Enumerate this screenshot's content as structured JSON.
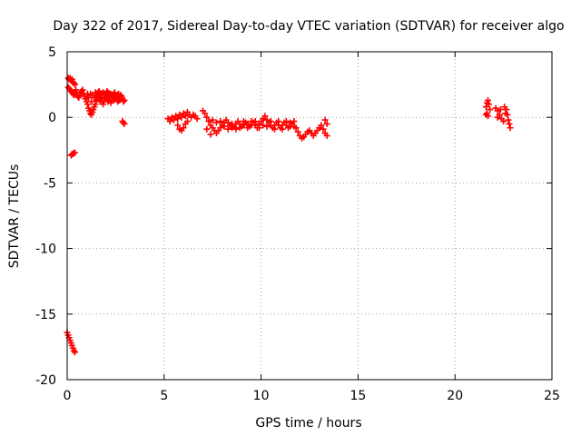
{
  "chart_data": {
    "type": "scatter",
    "title": "Day 322 of 2017, Sidereal Day-to-day VTEC variation (SDTVAR) for receiver algo",
    "xlabel": "GPS time / hours",
    "ylabel": "SDTVAR / TECUs",
    "xlim": [
      0,
      25
    ],
    "ylim": [
      -20,
      5
    ],
    "xticks": [
      0,
      5,
      10,
      15,
      20,
      25
    ],
    "yticks": [
      5,
      0,
      -5,
      -10,
      -15,
      -20
    ],
    "xtick_labels": [
      "0",
      "5",
      "10",
      "15",
      "20",
      "25"
    ],
    "ytick_labels": [
      "5",
      "0",
      "-5",
      "-10",
      "-15",
      "-20"
    ],
    "grid": true,
    "marker": "+",
    "series_color": "#ff0000",
    "series": [
      {
        "name": "SDTVAR",
        "points": [
          [
            0.05,
            3.0
          ],
          [
            0.1,
            2.9
          ],
          [
            0.15,
            3.0
          ],
          [
            0.2,
            2.8
          ],
          [
            0.25,
            2.9
          ],
          [
            0.3,
            2.7
          ],
          [
            0.35,
            2.6
          ],
          [
            0.4,
            2.5
          ],
          [
            0.05,
            2.3
          ],
          [
            0.1,
            2.2
          ],
          [
            0.15,
            2.1
          ],
          [
            0.2,
            2.0
          ],
          [
            0.25,
            1.9
          ],
          [
            0.3,
            1.8
          ],
          [
            0.35,
            1.7
          ],
          [
            0.4,
            1.9
          ],
          [
            0.45,
            2.1
          ],
          [
            0.5,
            1.9
          ],
          [
            0.55,
            1.6
          ],
          [
            0.6,
            1.5
          ],
          [
            0.65,
            1.7
          ],
          [
            0.7,
            1.9
          ],
          [
            0.75,
            2.0
          ],
          [
            0.8,
            2.1
          ],
          [
            0.85,
            1.8
          ],
          [
            0.9,
            1.6
          ],
          [
            0.95,
            1.4
          ],
          [
            1.0,
            1.2
          ],
          [
            1.05,
            1.0
          ],
          [
            1.1,
            0.7
          ],
          [
            1.15,
            0.5
          ],
          [
            1.2,
            0.3
          ],
          [
            1.25,
            0.2
          ],
          [
            1.3,
            0.4
          ],
          [
            1.35,
            0.6
          ],
          [
            1.4,
            0.8
          ],
          [
            1.45,
            1.0
          ],
          [
            1.5,
            1.3
          ],
          [
            1.55,
            1.6
          ],
          [
            1.6,
            1.9
          ],
          [
            1.65,
            2.0
          ],
          [
            1.7,
            1.8
          ],
          [
            1.75,
            1.5
          ],
          [
            1.8,
            1.2
          ],
          [
            1.85,
            1.0
          ],
          [
            1.9,
            1.2
          ],
          [
            1.95,
            1.5
          ],
          [
            2.0,
            1.8
          ],
          [
            2.05,
            2.0
          ],
          [
            2.1,
            1.9
          ],
          [
            2.15,
            1.6
          ],
          [
            2.2,
            1.3
          ],
          [
            2.25,
            1.1
          ],
          [
            2.3,
            1.3
          ],
          [
            2.35,
            1.6
          ],
          [
            2.4,
            1.8
          ],
          [
            2.45,
            1.9
          ],
          [
            2.5,
            1.7
          ],
          [
            2.55,
            1.4
          ],
          [
            2.6,
            1.2
          ],
          [
            2.65,
            1.3
          ],
          [
            2.7,
            1.5
          ],
          [
            2.75,
            1.7
          ],
          [
            2.8,
            1.6
          ],
          [
            2.85,
            1.4
          ],
          [
            2.9,
            1.2
          ],
          [
            2.95,
            1.3
          ],
          [
            1.0,
            1.6
          ],
          [
            1.1,
            1.5
          ],
          [
            1.2,
            1.8
          ],
          [
            1.3,
            1.7
          ],
          [
            1.4,
            1.5
          ],
          [
            1.5,
            1.7
          ],
          [
            1.6,
            1.4
          ],
          [
            1.7,
            1.2
          ],
          [
            1.8,
            1.5
          ],
          [
            1.9,
            1.7
          ],
          [
            2.0,
            1.4
          ],
          [
            2.1,
            1.2
          ],
          [
            2.2,
            1.6
          ],
          [
            2.3,
            1.5
          ],
          [
            2.4,
            1.3
          ],
          [
            2.5,
            1.5
          ],
          [
            2.6,
            1.6
          ],
          [
            2.7,
            1.3
          ],
          [
            1.05,
            1.8
          ],
          [
            1.25,
            1.2
          ],
          [
            1.45,
            1.9
          ],
          [
            1.65,
            1.6
          ],
          [
            1.85,
            1.9
          ],
          [
            2.05,
            1.6
          ],
          [
            2.25,
            1.8
          ],
          [
            2.45,
            1.4
          ],
          [
            2.65,
            1.8
          ],
          [
            2.85,
            -0.3
          ],
          [
            2.9,
            -0.4
          ],
          [
            2.95,
            -0.5
          ],
          [
            0.2,
            -2.9
          ],
          [
            0.25,
            -2.8
          ],
          [
            0.3,
            -2.8
          ],
          [
            0.35,
            -2.7
          ],
          [
            0.4,
            -2.7
          ],
          [
            0.0,
            -16.4
          ],
          [
            0.05,
            -16.6
          ],
          [
            0.1,
            -16.8
          ],
          [
            0.15,
            -17.0
          ],
          [
            0.2,
            -17.2
          ],
          [
            0.25,
            -17.4
          ],
          [
            0.3,
            -17.6
          ],
          [
            0.35,
            -17.8
          ],
          [
            0.4,
            -17.9
          ],
          [
            5.2,
            -0.1
          ],
          [
            5.3,
            -0.3
          ],
          [
            5.4,
            0.0
          ],
          [
            5.5,
            -0.2
          ],
          [
            5.6,
            0.1
          ],
          [
            5.7,
            -0.1
          ],
          [
            5.8,
            0.2
          ],
          [
            5.9,
            0.0
          ],
          [
            6.0,
            0.3
          ],
          [
            6.1,
            0.1
          ],
          [
            6.2,
            0.4
          ],
          [
            6.3,
            0.2
          ],
          [
            6.4,
            0.0
          ],
          [
            6.5,
            0.2
          ],
          [
            6.6,
            0.1
          ],
          [
            6.7,
            -0.1
          ],
          [
            5.7,
            -0.6
          ],
          [
            5.8,
            -0.9
          ],
          [
            5.9,
            -1.0
          ],
          [
            6.0,
            -0.8
          ],
          [
            6.1,
            -0.5
          ],
          [
            6.2,
            -0.3
          ],
          [
            7.0,
            0.5
          ],
          [
            7.1,
            0.3
          ],
          [
            7.2,
            0.0
          ],
          [
            7.3,
            -0.3
          ],
          [
            7.4,
            -0.6
          ],
          [
            7.5,
            -0.8
          ],
          [
            7.6,
            -1.0
          ],
          [
            7.7,
            -1.2
          ],
          [
            7.8,
            -1.0
          ],
          [
            7.9,
            -0.8
          ],
          [
            8.0,
            -0.6
          ],
          [
            8.1,
            -0.4
          ],
          [
            8.2,
            -0.2
          ],
          [
            8.3,
            -0.4
          ],
          [
            8.4,
            -0.6
          ],
          [
            8.5,
            -0.8
          ],
          [
            8.6,
            -0.7
          ],
          [
            8.7,
            -0.5
          ],
          [
            8.8,
            -0.3
          ],
          [
            8.9,
            -0.5
          ],
          [
            9.0,
            -0.7
          ],
          [
            9.1,
            -0.6
          ],
          [
            9.2,
            -0.4
          ],
          [
            9.3,
            -0.5
          ],
          [
            9.4,
            -0.7
          ],
          [
            9.5,
            -0.6
          ],
          [
            9.6,
            -0.4
          ],
          [
            9.7,
            -0.6
          ],
          [
            9.8,
            -0.8
          ],
          [
            9.9,
            -0.5
          ],
          [
            10.0,
            -0.3
          ],
          [
            10.1,
            -0.1
          ],
          [
            10.2,
            0.1
          ],
          [
            10.3,
            -0.2
          ],
          [
            10.4,
            -0.4
          ],
          [
            10.5,
            -0.6
          ],
          [
            10.6,
            -0.8
          ],
          [
            10.7,
            -0.6
          ],
          [
            10.8,
            -0.4
          ],
          [
            10.9,
            -0.6
          ],
          [
            11.0,
            -0.8
          ],
          [
            11.1,
            -0.6
          ],
          [
            11.2,
            -0.4
          ],
          [
            11.3,
            -0.6
          ],
          [
            11.4,
            -0.8
          ],
          [
            11.5,
            -0.7
          ],
          [
            11.6,
            -0.5
          ],
          [
            11.7,
            -0.3
          ],
          [
            11.8,
            -0.8
          ],
          [
            11.9,
            -1.1
          ],
          [
            12.0,
            -1.4
          ],
          [
            12.1,
            -1.6
          ],
          [
            12.2,
            -1.5
          ],
          [
            12.3,
            -1.3
          ],
          [
            12.4,
            -1.1
          ],
          [
            12.5,
            -1.0
          ],
          [
            12.6,
            -1.2
          ],
          [
            12.7,
            -1.4
          ],
          [
            12.8,
            -1.2
          ],
          [
            12.9,
            -1.0
          ],
          [
            13.0,
            -0.8
          ],
          [
            13.1,
            -0.6
          ],
          [
            13.2,
            -0.9
          ],
          [
            13.3,
            -1.2
          ],
          [
            13.4,
            -1.4
          ],
          [
            13.3,
            -0.2
          ],
          [
            13.4,
            -0.5
          ],
          [
            7.5,
            -0.2
          ],
          [
            7.7,
            -0.4
          ],
          [
            7.9,
            -0.3
          ],
          [
            8.1,
            -0.7
          ],
          [
            8.3,
            -0.9
          ],
          [
            8.5,
            -0.5
          ],
          [
            8.7,
            -0.9
          ],
          [
            8.9,
            -0.8
          ],
          [
            9.1,
            -0.3
          ],
          [
            9.3,
            -0.8
          ],
          [
            9.5,
            -0.3
          ],
          [
            9.7,
            -0.3
          ],
          [
            9.9,
            -0.8
          ],
          [
            10.1,
            -0.6
          ],
          [
            10.3,
            -0.7
          ],
          [
            10.5,
            -0.3
          ],
          [
            10.7,
            -0.9
          ],
          [
            10.9,
            -0.3
          ],
          [
            11.1,
            -0.9
          ],
          [
            11.3,
            -0.3
          ],
          [
            11.5,
            -0.4
          ],
          [
            11.7,
            -0.7
          ],
          [
            7.2,
            -0.9
          ],
          [
            7.4,
            -1.3
          ],
          [
            21.6,
            0.8
          ],
          [
            21.65,
            1.1
          ],
          [
            21.7,
            1.3
          ],
          [
            21.75,
            1.0
          ],
          [
            21.8,
            0.6
          ],
          [
            21.65,
            0.3
          ],
          [
            21.7,
            0.1
          ],
          [
            21.6,
            0.2
          ],
          [
            22.1,
            0.7
          ],
          [
            22.2,
            0.5
          ],
          [
            22.3,
            0.2
          ],
          [
            22.4,
            -0.1
          ],
          [
            22.5,
            -0.3
          ],
          [
            22.6,
            0.3
          ],
          [
            22.65,
            0.6
          ],
          [
            22.7,
            0.2
          ],
          [
            22.75,
            -0.2
          ],
          [
            22.8,
            -0.5
          ],
          [
            22.85,
            -0.8
          ],
          [
            22.2,
            0.0
          ],
          [
            22.35,
            0.6
          ],
          [
            22.55,
            0.8
          ]
        ]
      }
    ]
  }
}
